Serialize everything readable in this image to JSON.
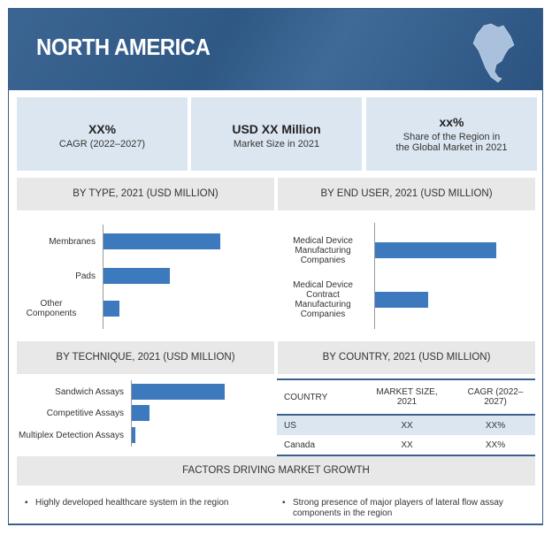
{
  "header": {
    "title": "NORTH AMERICA",
    "icon": "north-america-map-icon"
  },
  "stats": [
    {
      "value": "XX%",
      "label": "CAGR (2022–2027)"
    },
    {
      "value": "USD XX Million",
      "label": "Market Size in 2021"
    },
    {
      "value": "xx%",
      "label_line1": "Share of the Region in",
      "label_line2": "the Global Market in 2021"
    }
  ],
  "colors": {
    "header": "#2f5884",
    "bar": "#3c79bd",
    "box": "#dce6f1",
    "section": "#e8e8e8"
  },
  "chart_data": [
    {
      "type": "bar",
      "orientation": "horizontal",
      "title": "BY TYPE, 2021 (USD MILLION)",
      "categories": [
        "Membranes",
        "Pads",
        "Other Components"
      ],
      "values": [
        100,
        57,
        14
      ]
    },
    {
      "type": "bar",
      "orientation": "horizontal",
      "title": "BY END USER, 2021 (USD MILLION)",
      "categories": [
        "Medical Device Manufacturing Companies",
        "Medical Device Contract Manufacturing Companies"
      ],
      "values": [
        100,
        44
      ]
    },
    {
      "type": "bar",
      "orientation": "horizontal",
      "title": "BY TECHNIQUE, 2021 (USD MILLION)",
      "categories": [
        "Sandwich Assays",
        "Competitive Assays",
        "Multiplex Detection Assays"
      ],
      "values": [
        100,
        19,
        4
      ]
    }
  ],
  "country": {
    "title": "BY COUNTRY, 2021 (USD MILLION)",
    "headers": [
      "COUNTRY",
      "MARKET SIZE, 2021",
      "CAGR (2022–2027)"
    ],
    "rows": [
      [
        "US",
        "XX",
        "XX%"
      ],
      [
        "Canada",
        "XX",
        "XX%"
      ]
    ]
  },
  "factors": {
    "title": "FACTORS DRIVING MARKET GROWTH",
    "items": [
      "Highly developed healthcare system in the region",
      "Strong presence of major players of lateral flow assay components in the region"
    ]
  }
}
